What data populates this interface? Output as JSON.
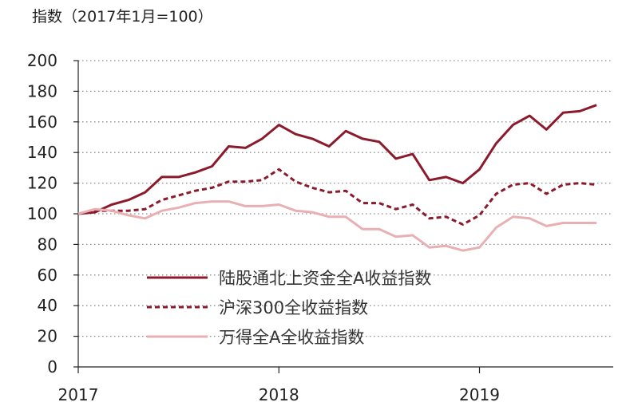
{
  "chart_data": {
    "type": "line",
    "title": "",
    "ylabel": "指数（2017年1月=100）",
    "xlabel": "",
    "ylim": [
      0,
      200
    ],
    "yticks": [
      0,
      20,
      40,
      60,
      80,
      100,
      120,
      140,
      160,
      180,
      200
    ],
    "xlim": [
      "2017-01",
      "2019-09"
    ],
    "xticks": [
      "2017",
      "2018",
      "2019"
    ],
    "x": [
      "2017-01",
      "2017-02",
      "2017-03",
      "2017-04",
      "2017-05",
      "2017-06",
      "2017-07",
      "2017-08",
      "2017-09",
      "2017-10",
      "2017-11",
      "2017-12",
      "2018-01",
      "2018-02",
      "2018-03",
      "2018-04",
      "2018-05",
      "2018-06",
      "2018-07",
      "2018-08",
      "2018-09",
      "2018-10",
      "2018-11",
      "2018-12",
      "2019-01",
      "2019-02",
      "2019-03",
      "2019-04",
      "2019-05",
      "2019-06",
      "2019-07",
      "2019-08"
    ],
    "grid": "y-dotted",
    "legend_position": "bottom-center",
    "series": [
      {
        "name": "陆股通北上资金全A收益指数",
        "color": "#8b1a2c",
        "style": "solid",
        "values": [
          100,
          101,
          106,
          109,
          114,
          124,
          124,
          127,
          131,
          144,
          143,
          149,
          158,
          152,
          149,
          144,
          154,
          149,
          147,
          136,
          139,
          122,
          124,
          120,
          129,
          146,
          158,
          164,
          155,
          166,
          167,
          171
        ]
      },
      {
        "name": "沪深300全收益指数",
        "color": "#8b1a2c",
        "style": "dashed",
        "values": [
          100,
          102,
          102,
          102,
          103,
          109,
          112,
          115,
          117,
          121,
          121,
          122,
          129,
          121,
          117,
          114,
          115,
          107,
          107,
          103,
          106,
          97,
          98,
          93,
          99,
          113,
          119,
          120,
          113,
          119,
          120,
          119
        ]
      },
      {
        "name": "万得全A全收益指数",
        "color": "#e8b0b3",
        "style": "solid",
        "values": [
          100,
          103,
          102,
          99,
          97,
          102,
          104,
          107,
          108,
          108,
          105,
          105,
          106,
          102,
          101,
          98,
          98,
          90,
          90,
          85,
          86,
          78,
          79,
          76,
          78,
          91,
          98,
          97,
          92,
          94,
          94,
          94
        ]
      }
    ]
  }
}
